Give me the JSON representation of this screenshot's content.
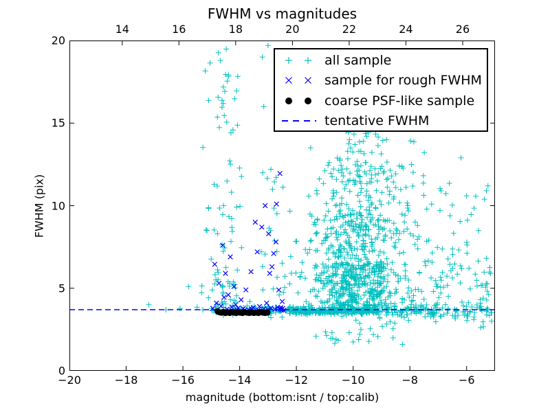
{
  "colors": {
    "background": "#ffffff",
    "spine": "#000000",
    "cyan": "#00bfbf",
    "blue": "#0000ff",
    "black": "#000000"
  },
  "chart_data": {
    "type": "scatter",
    "title": "FWHM vs magnitudes",
    "xlabel": "magnitude (bottom:isnt / top:calib)",
    "ylabel": "FWHM (pix)",
    "grid": false,
    "legend_position": "upper right",
    "axes": {
      "bottom": {
        "min": -20,
        "max": -5,
        "ticks": [
          -20,
          -18,
          -16,
          -14,
          -12,
          -10,
          -8,
          -6
        ]
      },
      "top": {
        "min": 12.14,
        "max": 27.14,
        "ticks": [
          14,
          16,
          18,
          20,
          22,
          24,
          26
        ]
      },
      "left": {
        "min": 0,
        "max": 20,
        "ticks": [
          0,
          5,
          10,
          15,
          20
        ]
      }
    },
    "tentative_fwhm": 3.7,
    "series": [
      {
        "name": "all sample",
        "marker": "plus",
        "color": "#00bfbf",
        "seed": 12345,
        "points": [
          [
            -17.2,
            4.0
          ],
          [
            -16.6,
            3.7
          ],
          [
            -16.1,
            3.78
          ],
          [
            -15.8,
            5.1
          ],
          [
            -15.5,
            3.85
          ],
          [
            -15.3,
            3.7
          ],
          [
            -15.15,
            8.5
          ],
          [
            -13.0,
            19.7
          ],
          [
            -13.2,
            19.0
          ],
          [
            -12.4,
            18.9
          ],
          [
            -13.15,
            16.0
          ],
          [
            -12.9,
            12.2
          ],
          [
            -6.2,
            12.9
          ],
          [
            -5.3,
            10.9
          ],
          [
            -6.0,
            10.6
          ],
          [
            -6.9,
            10.9
          ],
          [
            -5.2,
            3.35
          ],
          [
            -5.12,
            3.0
          ],
          [
            -10.6,
            1.9
          ],
          [
            -10.0,
            1.75
          ]
        ],
        "clusters": [
          {
            "n": 22,
            "x": [
              "gauss",
              -14.55,
              0.33
            ],
            "y": [
              "uniform",
              15.0,
              19.5
            ]
          },
          {
            "n": 14,
            "x": [
              "gauss",
              -14.5,
              0.3
            ],
            "y": [
              "uniform",
              10.0,
              15.0
            ]
          },
          {
            "n": 26,
            "x": [
              "gauss",
              -14.6,
              0.33
            ],
            "y": [
              "uniform",
              5.5,
              10.0
            ]
          },
          {
            "n": 30,
            "x": [
              "gauss",
              -14.5,
              0.4
            ],
            "y": [
              "uniform",
              3.8,
              5.5
            ]
          },
          {
            "n": 22,
            "x": [
              "gauss",
              -12.9,
              0.28
            ],
            "y": [
              "uniform",
              4.5,
              12.0
            ]
          },
          {
            "n": 420,
            "x": [
              "gauss",
              -9.9,
              0.9
            ],
            "y": [
              "uniform",
              3.9,
              6.5
            ]
          },
          {
            "n": 230,
            "x": [
              "gauss",
              -9.9,
              0.85
            ],
            "y": [
              "uniform",
              6.5,
              9.5
            ]
          },
          {
            "n": 120,
            "x": [
              "gauss",
              -9.8,
              0.8
            ],
            "y": [
              "uniform",
              9.5,
              12.5
            ]
          },
          {
            "n": 50,
            "x": [
              "gauss",
              -9.8,
              0.75
            ],
            "y": [
              "uniform",
              12.5,
              15.3
            ]
          },
          {
            "n": 8,
            "x": [
              "gauss",
              -9.6,
              0.7
            ],
            "y": [
              "uniform",
              15.3,
              16.3
            ]
          },
          {
            "n": 90,
            "x": [
              "uniform",
              -8.3,
              -5.15
            ],
            "y": [
              "uniform",
              2.6,
              8.0
            ]
          },
          {
            "n": 28,
            "x": [
              "uniform",
              -8.3,
              -5.2
            ],
            "y": [
              "uniform",
              8.0,
              11.5
            ]
          },
          {
            "n": 60,
            "x": [
              "uniform",
              -15.05,
              -12.3
            ],
            "y": [
              "gauss",
              3.7,
              0.15
            ]
          },
          {
            "n": 330,
            "x": [
              "uniform",
              -12.3,
              -9.2
            ],
            "y": [
              "gauss",
              3.65,
              0.12
            ]
          },
          {
            "n": 90,
            "x": [
              "uniform",
              -9.2,
              -7.0
            ],
            "y": [
              "gauss",
              3.6,
              0.18
            ]
          },
          {
            "n": 40,
            "x": [
              "uniform",
              -7.0,
              -5.1
            ],
            "y": [
              "gauss",
              3.55,
              0.25
            ]
          },
          {
            "n": 26,
            "x": [
              "uniform",
              -11.5,
              -8.0
            ],
            "y": [
              "uniform",
              1.6,
              3.2
            ]
          }
        ]
      },
      {
        "name": "sample for rough FWHM",
        "marker": "x",
        "color": "#0000ff",
        "points": [
          [
            -14.95,
            3.78
          ],
          [
            -14.88,
            6.45
          ],
          [
            -14.82,
            4.1
          ],
          [
            -14.73,
            5.3
          ],
          [
            -14.66,
            3.92
          ],
          [
            -14.6,
            7.6
          ],
          [
            -14.55,
            4.45
          ],
          [
            -14.5,
            5.9
          ],
          [
            -14.45,
            3.72
          ],
          [
            -14.4,
            4.6
          ],
          [
            -14.33,
            6.9
          ],
          [
            -14.28,
            3.86
          ],
          [
            -14.2,
            5.1
          ],
          [
            -14.14,
            4.0
          ],
          [
            -14.05,
            3.8
          ],
          [
            -13.95,
            4.3
          ],
          [
            -13.88,
            3.76
          ],
          [
            -13.78,
            4.9
          ],
          [
            -13.68,
            3.7
          ],
          [
            -13.6,
            6.0
          ],
          [
            -13.52,
            3.82
          ],
          [
            -13.45,
            9.0
          ],
          [
            -13.38,
            7.2
          ],
          [
            -13.3,
            3.9
          ],
          [
            -13.22,
            8.7
          ],
          [
            -13.15,
            3.76
          ],
          [
            -13.1,
            10.0
          ],
          [
            -13.05,
            4.1
          ],
          [
            -12.98,
            8.3
          ],
          [
            -12.94,
            5.9
          ],
          [
            -12.9,
            3.8
          ],
          [
            -12.86,
            6.3
          ],
          [
            -12.8,
            7.1
          ],
          [
            -12.76,
            3.72
          ],
          [
            -12.72,
            7.8
          ],
          [
            -12.7,
            10.1
          ],
          [
            -12.66,
            3.85
          ],
          [
            -12.62,
            4.9
          ],
          [
            -12.58,
            11.95
          ],
          [
            -12.56,
            3.74
          ],
          [
            -12.52,
            3.68
          ],
          [
            -12.5,
            4.2
          ],
          [
            -12.48,
            3.78
          ],
          [
            -12.45,
            3.66
          ],
          [
            -13.0,
            3.7
          ],
          [
            -13.35,
            3.68
          ],
          [
            -13.58,
            3.74
          ],
          [
            -13.82,
            3.68
          ],
          [
            -14.1,
            3.7
          ],
          [
            -12.55,
            3.82
          ]
        ]
      },
      {
        "name": "coarse PSF-like sample",
        "marker": "dot",
        "color": "#000000",
        "points": [
          [
            -14.78,
            3.6
          ],
          [
            -14.72,
            3.55
          ],
          [
            -14.65,
            3.52
          ],
          [
            -14.58,
            3.56
          ],
          [
            -14.5,
            3.5
          ],
          [
            -14.42,
            3.54
          ],
          [
            -14.35,
            3.5
          ],
          [
            -14.28,
            3.56
          ],
          [
            -14.2,
            3.52
          ],
          [
            -14.12,
            3.5
          ],
          [
            -14.05,
            3.55
          ],
          [
            -13.98,
            3.52
          ],
          [
            -13.9,
            3.5
          ],
          [
            -13.82,
            3.55
          ],
          [
            -13.74,
            3.52
          ],
          [
            -13.66,
            3.5
          ],
          [
            -13.58,
            3.54
          ],
          [
            -13.5,
            3.5
          ],
          [
            -13.42,
            3.53
          ],
          [
            -13.34,
            3.5
          ],
          [
            -13.26,
            3.55
          ],
          [
            -13.18,
            3.52
          ],
          [
            -13.1,
            3.5
          ],
          [
            -13.02,
            3.53
          ]
        ]
      },
      {
        "name": "tentative FWHM",
        "marker": "dashed-line",
        "color": "#0000ff",
        "hline": 3.7,
        "dash": [
          8,
          5
        ]
      }
    ]
  }
}
